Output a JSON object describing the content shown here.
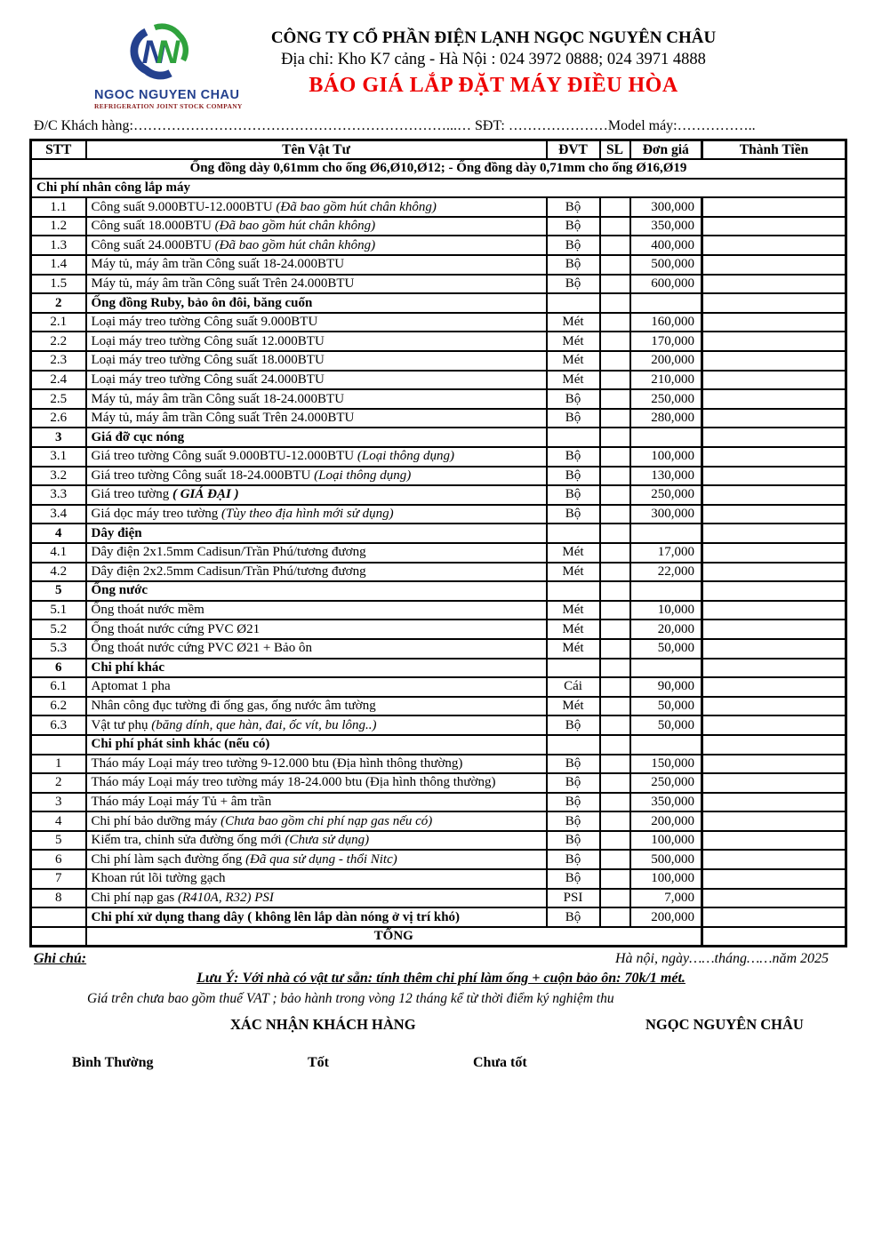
{
  "header": {
    "company": "CÔNG TY CỔ PHẦN ĐIỆN LẠNH NGỌC NGUYÊN CHÂU",
    "address": "Địa chỉ: Kho K7 cảng - Hà Nội : 024 3972 0888; 024 3971 4888",
    "title": "BÁO GIÁ  LẮP ĐẶT MÁY ĐIỀU HÒA",
    "logo_name": "NGOC NGUYEN CHAU",
    "logo_subtitle": "REFRIGERATION JOINT STOCK COMPANY",
    "logo_colors": {
      "blue": "#24418e",
      "green": "#2fa23d"
    },
    "title_color": "#ee0000",
    "customer_label": "Đ/C Khách hàng:",
    "customer_dots": "…………………………………………………………...…",
    "phone_label": " SĐT: ",
    "phone_dots": "…………………",
    "model_label": "Model máy:",
    "model_dots": "…………….."
  },
  "table": {
    "columns": [
      "STT",
      "Tên Vật Tư",
      "ĐVT",
      "SL",
      "Đơn giá",
      "Thành Tiền"
    ],
    "rows": [
      {
        "type": "subheader",
        "name": "Ống đồng dày 0,61mm cho ống Ø6,Ø10,Ø12;  - Ống đồng dày 0,71mm cho ống Ø16,Ø19"
      },
      {
        "type": "section-full",
        "name": "Chi phí nhân công lắp máy"
      },
      {
        "type": "item",
        "stt": "1.1",
        "name": "Công suất 9.000BTU-12.000BTU ",
        "note": "(Đã bao gồm hút chân không)",
        "unit": "Bộ",
        "price": "300,000"
      },
      {
        "type": "item",
        "stt": "1.2",
        "name": "Công suất 18.000BTU ",
        "note": "(Đã bao gồm hút chân không)",
        "unit": "Bộ",
        "price": "350,000"
      },
      {
        "type": "item",
        "stt": "1.3",
        "name": "Công suất 24.000BTU ",
        "note": "(Đã bao gồm hút chân không)",
        "unit": "Bộ",
        "price": "400,000"
      },
      {
        "type": "item",
        "stt": "1.4",
        "name": "Máy tủ, máy âm trần Công suất 18-24.000BTU",
        "unit": "Bộ",
        "price": "500,000"
      },
      {
        "type": "item",
        "stt": "1.5",
        "name": "Máy tủ, máy âm trần Công suất Trên 24.000BTU",
        "unit": "Bộ",
        "price": "600,000"
      },
      {
        "type": "section",
        "stt": "2",
        "name": "Ống đồng Ruby, bảo ôn đôi, băng cuốn"
      },
      {
        "type": "item",
        "stt": "2.1",
        "name": "Loại máy treo tường Công suất 9.000BTU",
        "unit": "Mét",
        "price": "160,000"
      },
      {
        "type": "item",
        "stt": "2.2",
        "name": "Loại máy treo tường Công suất 12.000BTU",
        "unit": "Mét",
        "price": "170,000"
      },
      {
        "type": "item",
        "stt": "2.3",
        "name": "Loại máy treo tường Công suất 18.000BTU",
        "unit": "Mét",
        "price": "200,000"
      },
      {
        "type": "item",
        "stt": "2.4",
        "name": "Loại máy treo tường Công suất 24.000BTU",
        "unit": "Mét",
        "price": "210,000"
      },
      {
        "type": "item",
        "stt": "2.5",
        "name": "Máy tủ, máy âm trần Công suất 18-24.000BTU",
        "unit": "Bộ",
        "price": "250,000"
      },
      {
        "type": "item",
        "stt": "2.6",
        "name": "Máy tủ, máy âm trần Công suất Trên 24.000BTU",
        "unit": "Bộ",
        "price": "280,000"
      },
      {
        "type": "section",
        "stt": "3",
        "name": "Giá đỡ cục nóng"
      },
      {
        "type": "item",
        "stt": "3.1",
        "name": "Giá treo tường Công suất 9.000BTU-12.000BTU ",
        "note": "(Loại thông dụng)",
        "unit": "Bộ",
        "price": "100,000"
      },
      {
        "type": "item",
        "stt": "3.2",
        "name": "Giá treo tường Công suất 18-24.000BTU ",
        "note": "(Loại thông dụng)",
        "unit": "Bộ",
        "price": "130,000"
      },
      {
        "type": "item",
        "stt": "3.3",
        "name": "Giá treo tường ",
        "note": "( GIÁ ĐẠI )",
        "note_bold": true,
        "unit": "Bộ",
        "price": "250,000"
      },
      {
        "type": "item",
        "stt": "3.4",
        "name": "Giá dọc máy treo tường ",
        "note": "(Tùy theo địa hình mới sử dụng)",
        "unit": "Bộ",
        "price": "300,000"
      },
      {
        "type": "section",
        "stt": "4",
        "name": "Dây điện"
      },
      {
        "type": "item",
        "stt": "4.1",
        "name": "Dây điện 2x1.5mm Cadisun/Trần Phú/tương đương",
        "unit": "Mét",
        "price": "17,000"
      },
      {
        "type": "item",
        "stt": "4.2",
        "name": "Dây điện 2x2.5mm Cadisun/Trần Phú/tương đương",
        "unit": "Mét",
        "price": "22,000"
      },
      {
        "type": "section",
        "stt": "5",
        "name": "Ống nước"
      },
      {
        "type": "item",
        "stt": "5.1",
        "name": "Ống thoát nước mềm",
        "unit": "Mét",
        "price": "10,000"
      },
      {
        "type": "item",
        "stt": "5.2",
        "name": "Ống thoát nước cứng PVC Ø21",
        "unit": "Mét",
        "price": "20,000"
      },
      {
        "type": "item",
        "stt": "5.3",
        "name": "Ống thoát nước cứng PVC Ø21 + Bảo ôn",
        "unit": "Mét",
        "price": "50,000"
      },
      {
        "type": "section",
        "stt": "6",
        "name": "Chi phí khác"
      },
      {
        "type": "item",
        "stt": "6.1",
        "name": "Aptomat 1 pha",
        "unit": "Cái",
        "price": "90,000"
      },
      {
        "type": "item",
        "stt": "6.2",
        "name": "Nhân công đục tường đi ống gas, ống nước âm tường",
        "unit": "Mét",
        "price": "50,000"
      },
      {
        "type": "item",
        "stt": "6.3",
        "name": "Vật tư phụ ",
        "note": "(băng dính, que hàn, đai, ốc vít, bu lông..)",
        "unit": "Bộ",
        "price": "50,000"
      },
      {
        "type": "section",
        "stt": "",
        "name": "Chi phí phát sinh khác (nếu có)"
      },
      {
        "type": "item",
        "stt": "1",
        "name": "Tháo máy Loại máy treo tường 9-12.000  btu (Địa hình thông thường)",
        "unit": "Bộ",
        "price": "150,000"
      },
      {
        "type": "item",
        "stt": "2",
        "name": "Tháo máy Loại máy treo tường máy 18-24.000 btu (Địa hình thông thường)",
        "unit": "Bộ",
        "price": "250,000"
      },
      {
        "type": "item",
        "stt": "3",
        "name": "Tháo máy Loại máy Tủ + âm trần",
        "unit": "Bộ",
        "price": "350,000"
      },
      {
        "type": "item",
        "stt": "4",
        "name": "Chi phí bảo dưỡng máy ",
        "note": "(Chưa bao gồm chi phí nạp gas nếu có)",
        "unit": "Bộ",
        "price": "200,000"
      },
      {
        "type": "item",
        "stt": "5",
        "name": "Kiểm tra, chỉnh sửa đường ống mới ",
        "note": "(Chưa sử dụng)",
        "unit": "Bộ",
        "price": "100,000"
      },
      {
        "type": "item",
        "stt": "6",
        "name": "Chi phí làm sạch đường ống ",
        "note": "(Đã qua sử dụng - thổi Nitc)",
        "unit": "Bộ",
        "price": "500,000"
      },
      {
        "type": "item",
        "stt": "7",
        "name": "Khoan rút lõi tường gạch",
        "unit": "Bộ",
        "price": "100,000"
      },
      {
        "type": "item",
        "stt": "8",
        "name": "Chi phí nạp gas ",
        "note": "(R410A, R32) PSI",
        "unit": "PSI",
        "price": "7,000"
      },
      {
        "type": "item",
        "stt": "",
        "bold": true,
        "name": "Chi phí xử dụng thang dây ( không lên lắp dàn nóng ở vị trí khó)",
        "unit": "Bộ",
        "price": "200,000"
      },
      {
        "type": "total",
        "name": "TỔNG"
      }
    ]
  },
  "footer": {
    "note_label": "Ghi chú:",
    "date_line": "Hà nội, ngày……tháng……năm 2025",
    "warning": "Lưu Ý: Với nhà có vật tư sẵn:  tính thêm chi phí làm ống + cuộn bảo ôn: 70k/1 mét.",
    "vat_line": "Giá trên chưa bao gồm thuế VAT ; bảo hành trong vòng 12 tháng kể từ thời điểm ký nghiệm thu",
    "sign_customer": "XÁC NHẬN KHÁCH HÀNG",
    "sign_company": "NGỌC NGUYÊN CHÂU",
    "ratings": [
      "Bình Thường",
      "Tốt",
      "Chưa tốt"
    ]
  }
}
